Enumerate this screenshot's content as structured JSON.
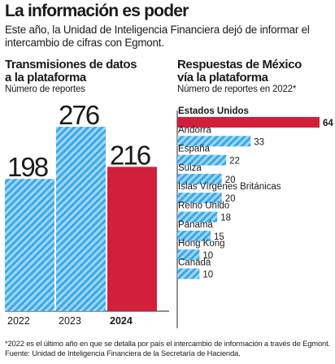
{
  "header": {
    "title": "La información es poder",
    "subtitle": "Este año, la Unidad de Inteligencia Financiera dejó de informar el intercambio de cifras con Egmont."
  },
  "left_chart": {
    "title_line1": "Transmisiones de datos",
    "title_line2": "a la plataforma",
    "subtitle": "Número de reportes"
  },
  "right_chart": {
    "title_line1": "Respuestas de México",
    "title_line2": "vía la plataforma",
    "subtitle": "Número de reportes en 2022*"
  },
  "footnote": "*2022 es el último año en que se detalla por país el intercambio de información a través de Egmont. Fuente: Unidad de Inteligencia Financiera de la Secretaría de Hacienda.",
  "colors": {
    "hatch_blue": "#3aa8e8",
    "hatch_light": "#9fd6f6",
    "highlight_red": "#d21f3c"
  },
  "chart_data": [
    {
      "type": "bar",
      "orientation": "vertical",
      "categories": [
        "2022",
        "2023",
        "2024"
      ],
      "values": [
        198,
        276,
        216
      ],
      "highlight": "2024",
      "ylim": [
        0,
        276
      ]
    },
    {
      "type": "bar",
      "orientation": "horizontal",
      "categories": [
        "Estados Unidos",
        "Andorra",
        "España",
        "Suiza",
        "Islas Vírgenes Británicas",
        "Reino Unido",
        "Panamá",
        "Hong Kong",
        "Canadá"
      ],
      "values": [
        64,
        33,
        22,
        20,
        20,
        18,
        15,
        10,
        10
      ],
      "highlight": "Estados Unidos",
      "xlim": [
        0,
        64
      ]
    }
  ]
}
